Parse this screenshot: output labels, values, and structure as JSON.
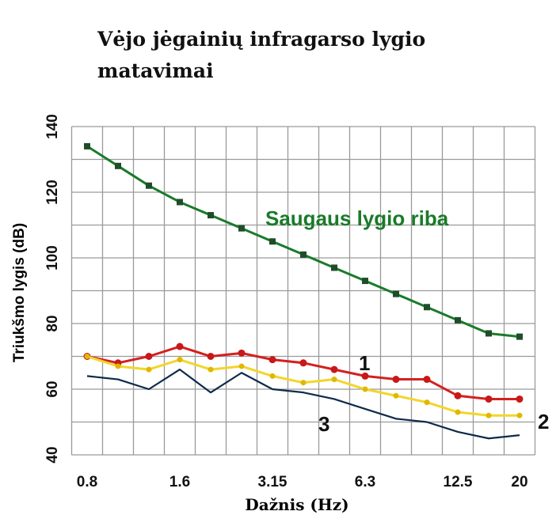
{
  "chart_data": {
    "type": "line",
    "title": "Vėjo jėgainių infragarso lygio matavimai",
    "xlabel": "Dažnis  (Hz)",
    "ylabel": "Triukšmo lygis (dB)",
    "x": [
      "0.8",
      "1",
      "1.25",
      "1.6",
      "2",
      "2.5",
      "3.15",
      "4",
      "5",
      "6.3",
      "8",
      "10",
      "12.5",
      "16",
      "20"
    ],
    "x_tick_labels": [
      "0.8",
      "1.6",
      "3.15",
      "6.3",
      "12.5",
      "20"
    ],
    "y_tick_labels": [
      "40",
      "60",
      "80",
      "100",
      "120",
      "140"
    ],
    "ylim": [
      40,
      140
    ],
    "grid": true,
    "series": [
      {
        "name": "Saugaus lygio riba",
        "color": "#1a7a2a",
        "values": [
          134,
          128,
          122,
          117,
          113,
          109,
          105,
          101,
          97,
          93,
          89,
          85,
          81,
          77,
          76
        ]
      },
      {
        "name": "1",
        "color": "#d42020",
        "values": [
          70,
          68,
          70,
          73,
          70,
          71,
          69,
          68,
          66,
          64,
          63,
          63,
          58,
          57,
          57
        ]
      },
      {
        "name": "2",
        "color": "#f2d62a",
        "values": [
          70,
          67,
          66,
          69,
          66,
          67,
          64,
          62,
          63,
          60,
          58,
          56,
          53,
          52,
          52
        ]
      },
      {
        "name": "3",
        "color": "#0e2a4a",
        "values": [
          64,
          63,
          60,
          66,
          59,
          65,
          60,
          59,
          57,
          54,
          51,
          50,
          47,
          45,
          46
        ]
      }
    ]
  }
}
